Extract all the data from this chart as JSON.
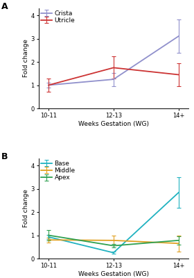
{
  "panel_A": {
    "x": [
      0,
      1,
      2
    ],
    "x_labels": [
      "10-11",
      "12-13",
      "14+"
    ],
    "series": [
      {
        "label": "Crista",
        "color": "#9090cc",
        "values": [
          1.0,
          1.25,
          3.1
        ],
        "yerr": [
          0.1,
          0.28,
          0.72
        ]
      },
      {
        "label": "Utricle",
        "color": "#cc3333",
        "values": [
          1.0,
          1.75,
          1.45
        ],
        "yerr": [
          0.27,
          0.48,
          0.48
        ]
      }
    ],
    "ylabel": "Fold change",
    "xlabel": "Weeks Gestation (WG)",
    "ylim": [
      0,
      4.3
    ],
    "yticks": [
      0,
      1,
      2,
      3,
      4
    ]
  },
  "panel_B": {
    "x": [
      0,
      1,
      2
    ],
    "x_labels": [
      "10-11",
      "12-13",
      "14+"
    ],
    "series": [
      {
        "label": "Base",
        "color": "#20b2c0",
        "values": [
          0.93,
          0.25,
          2.83
        ],
        "yerr": [
          0.1,
          0.04,
          0.65
        ]
      },
      {
        "label": "Middle",
        "color": "#e0a020",
        "values": [
          0.8,
          0.78,
          0.65
        ],
        "yerr": [
          0.1,
          0.22,
          0.35
        ]
      },
      {
        "label": "Apex",
        "color": "#2ea050",
        "values": [
          1.0,
          0.55,
          0.78
        ],
        "yerr": [
          0.22,
          0.08,
          0.18
        ]
      }
    ],
    "ylabel": "Fold change",
    "xlabel": "Weeks Gestation (WG)",
    "ylim": [
      0,
      4.3
    ],
    "yticks": [
      0,
      1,
      2,
      3,
      4
    ]
  },
  "background_color": "#ffffff",
  "label_fontsize": 6.5,
  "panel_label_fontsize": 9,
  "tick_fontsize": 6,
  "legend_fontsize": 6.5,
  "linewidth": 1.3,
  "capsize": 2.0,
  "elinewidth": 0.8,
  "capthick": 0.8
}
